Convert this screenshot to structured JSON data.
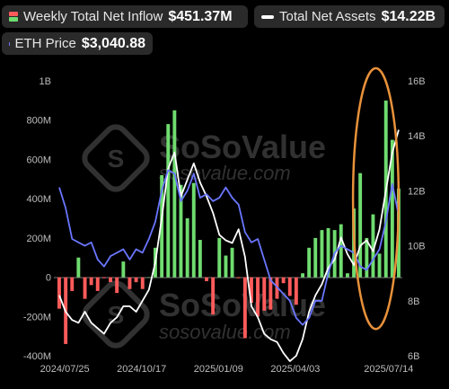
{
  "legend": {
    "inflow": {
      "label": "Weekly Total Net Inflow",
      "value": "$451.37M",
      "colors": [
        "#ff5b5b",
        "#6fdc6f"
      ]
    },
    "assets": {
      "label": "Total Net Assets",
      "value": "$14.22B",
      "color": "#ffffff"
    },
    "price": {
      "label": "ETH Price",
      "value": "$3,040.88",
      "color": "#6a76ff"
    }
  },
  "watermark": {
    "brand": "SoSoValue",
    "url": "sosovalue.com"
  },
  "highlight": {
    "shape": "ellipse",
    "color": "#e8913a",
    "x_range": [
      "2025/06/09",
      "2025/07/21"
    ]
  },
  "chart_data": {
    "type": "bar",
    "x_ticks": [
      "2024/07/25",
      "2024/10/17",
      "2025/01/09",
      "2025/04/03",
      "2025/07/14"
    ],
    "y_left": {
      "ticks": [
        "-400M",
        "-200M",
        "0",
        "200M",
        "400M",
        "600M",
        "800M",
        "1B"
      ],
      "ylim": [
        -400,
        1000
      ],
      "unit": "M"
    },
    "y_right": {
      "ticks": [
        "6B",
        "8B",
        "10B",
        "12B",
        "14B",
        "16B"
      ],
      "ylim": [
        6,
        16
      ],
      "unit": "B"
    },
    "colors": {
      "positive": "#6fdc6f",
      "negative": "#ff5b5b",
      "assets": "#ffffff",
      "price": "#6a76ff"
    },
    "grid": false,
    "weeks": [
      "2024/07/19",
      "2024/07/26",
      "2024/08/02",
      "2024/08/09",
      "2024/08/16",
      "2024/08/23",
      "2024/08/30",
      "2024/09/06",
      "2024/09/13",
      "2024/09/20",
      "2024/09/27",
      "2024/10/04",
      "2024/10/11",
      "2024/10/18",
      "2024/10/25",
      "2024/11/01",
      "2024/11/08",
      "2024/11/15",
      "2024/11/22",
      "2024/11/29",
      "2024/12/06",
      "2024/12/13",
      "2024/12/20",
      "2024/12/27",
      "2025/01/03",
      "2025/01/10",
      "2025/01/17",
      "2025/01/24",
      "2025/01/31",
      "2025/02/07",
      "2025/02/14",
      "2025/02/21",
      "2025/02/28",
      "2025/03/07",
      "2025/03/14",
      "2025/03/21",
      "2025/03/28",
      "2025/04/04",
      "2025/04/11",
      "2025/04/18",
      "2025/04/25",
      "2025/05/02",
      "2025/05/09",
      "2025/05/16",
      "2025/05/23",
      "2025/05/30",
      "2025/06/06",
      "2025/06/13",
      "2025/06/20",
      "2025/06/27",
      "2025/07/04",
      "2025/07/11",
      "2025/07/18",
      "2025/07/25"
    ],
    "series": [
      {
        "name": "Weekly Total Net Inflow",
        "type": "bar",
        "unit": "M",
        "values": [
          -160,
          -340,
          -70,
          100,
          -110,
          -40,
          -70,
          -5,
          -25,
          -80,
          80,
          -60,
          -25,
          -60,
          0,
          150,
          520,
          780,
          850,
          470,
          300,
          480,
          190,
          -20,
          -190,
          200,
          110,
          150,
          -5,
          -310,
          -130,
          -200,
          -170,
          -165,
          -110,
          -30,
          -95,
          -140,
          20,
          150,
          200,
          240,
          250,
          240,
          270,
          20,
          350,
          530,
          200,
          320,
          120,
          900,
          700,
          451.37
        ]
      },
      {
        "name": "Total Net Assets",
        "type": "line",
        "unit": "B",
        "values": [
          8.2,
          7.6,
          7.3,
          7.2,
          7.6,
          7.2,
          7.0,
          6.8,
          7.2,
          7.4,
          7.8,
          7.8,
          7.6,
          8.0,
          8.4,
          9.4,
          11.0,
          12.8,
          13.4,
          11.8,
          12.4,
          13.0,
          12.3,
          11.8,
          11.2,
          10.4,
          10.2,
          10.1,
          10.6,
          9.6,
          7.8,
          7.4,
          6.8,
          6.6,
          6.5,
          6.1,
          5.8,
          6.0,
          6.6,
          7.6,
          8.2,
          8.6,
          9.2,
          9.5,
          10.3,
          9.7,
          9.3,
          10.0,
          10.2,
          9.8,
          10.6,
          12.0,
          13.4,
          14.22
        ]
      },
      {
        "name": "ETH Price",
        "type": "line",
        "unit": "$",
        "values": [
          3450,
          3150,
          2700,
          2650,
          2600,
          2650,
          2400,
          2300,
          2450,
          2500,
          2550,
          2400,
          2550,
          2500,
          2700,
          2950,
          3400,
          3700,
          3650,
          3250,
          3400,
          3650,
          3300,
          3350,
          3250,
          3300,
          3450,
          3300,
          3200,
          2800,
          2650,
          2700,
          2400,
          2100,
          2000,
          1900,
          1800,
          1550,
          1450,
          1550,
          1800,
          1800,
          2200,
          2500,
          2600,
          2550,
          2500,
          2300,
          2250,
          2400,
          2550,
          2950,
          3500,
          3040.88
        ]
      }
    ]
  }
}
